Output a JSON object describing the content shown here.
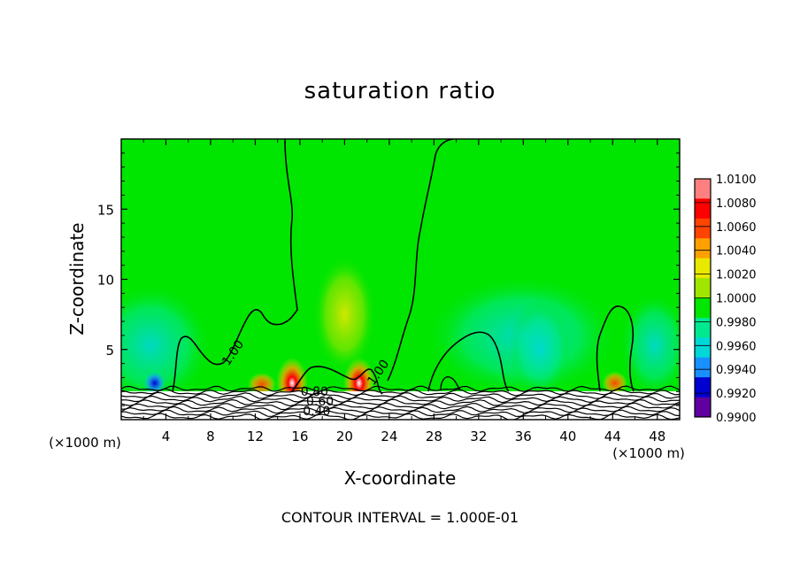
{
  "chart_data": {
    "type": "heatmap",
    "title": "saturation ratio",
    "xlabel": "X-coordinate",
    "ylabel": "Z-coordinate",
    "x_unit_label": "(×1000 m)",
    "y_unit_label": "(×1000 m)",
    "x_ticks": [
      4,
      8,
      12,
      16,
      20,
      24,
      28,
      32,
      36,
      40,
      44,
      48
    ],
    "y_ticks": [
      5,
      10,
      15
    ],
    "xlim": [
      0,
      50
    ],
    "ylim": [
      0,
      20
    ],
    "colorbar": {
      "ticks": [
        "1.0100",
        "1.0080",
        "1.0060",
        "1.0040",
        "1.0020",
        "1.0000",
        "0.9980",
        "0.9960",
        "0.9940",
        "0.9920",
        "0.9900"
      ],
      "colors": [
        "#ff8080",
        "#ff0000",
        "#ff4400",
        "#ffa000",
        "#e8e800",
        "#a0e600",
        "#00e600",
        "#00e890",
        "#00d8d8",
        "#1890ff",
        "#0000d0",
        "#6000a0"
      ]
    },
    "contour_labels": [
      {
        "text": "1.00",
        "x": 10.3,
        "z": 4.6
      },
      {
        "text": "1.00",
        "x": 23.3,
        "z": 3.2
      },
      {
        "text": "0.80",
        "x": 17.3,
        "z": 1.7
      },
      {
        "text": "0.60",
        "x": 17.8,
        "z": 1.0
      },
      {
        "text": "0.40",
        "x": 17.5,
        "z": 0.3
      }
    ],
    "annotation": "CONTOUR INTERVAL = 1.000E-01",
    "blobs": [
      {
        "x": 15.3,
        "z": 2.6,
        "rx": 1.0,
        "rz": 1.3,
        "color": "#ff0000"
      },
      {
        "x": 21.3,
        "z": 2.6,
        "rx": 1.0,
        "rz": 1.3,
        "color": "#ff0000"
      },
      {
        "x": 12.6,
        "z": 2.5,
        "rx": 0.9,
        "rz": 0.6,
        "color": "#ff4400"
      },
      {
        "x": 20.0,
        "z": 7.5,
        "rx": 2.0,
        "rz": 3.0,
        "color": "#e8e800"
      },
      {
        "x": 3.0,
        "z": 2.6,
        "rx": 0.7,
        "rz": 0.6,
        "color": "#0000d0"
      },
      {
        "x": 44.2,
        "z": 2.6,
        "rx": 0.8,
        "rz": 0.6,
        "color": "#ffa000"
      },
      {
        "x": 37.5,
        "z": 5.0,
        "rx": 2.0,
        "rz": 2.5,
        "color": "#00d8d8"
      }
    ]
  }
}
